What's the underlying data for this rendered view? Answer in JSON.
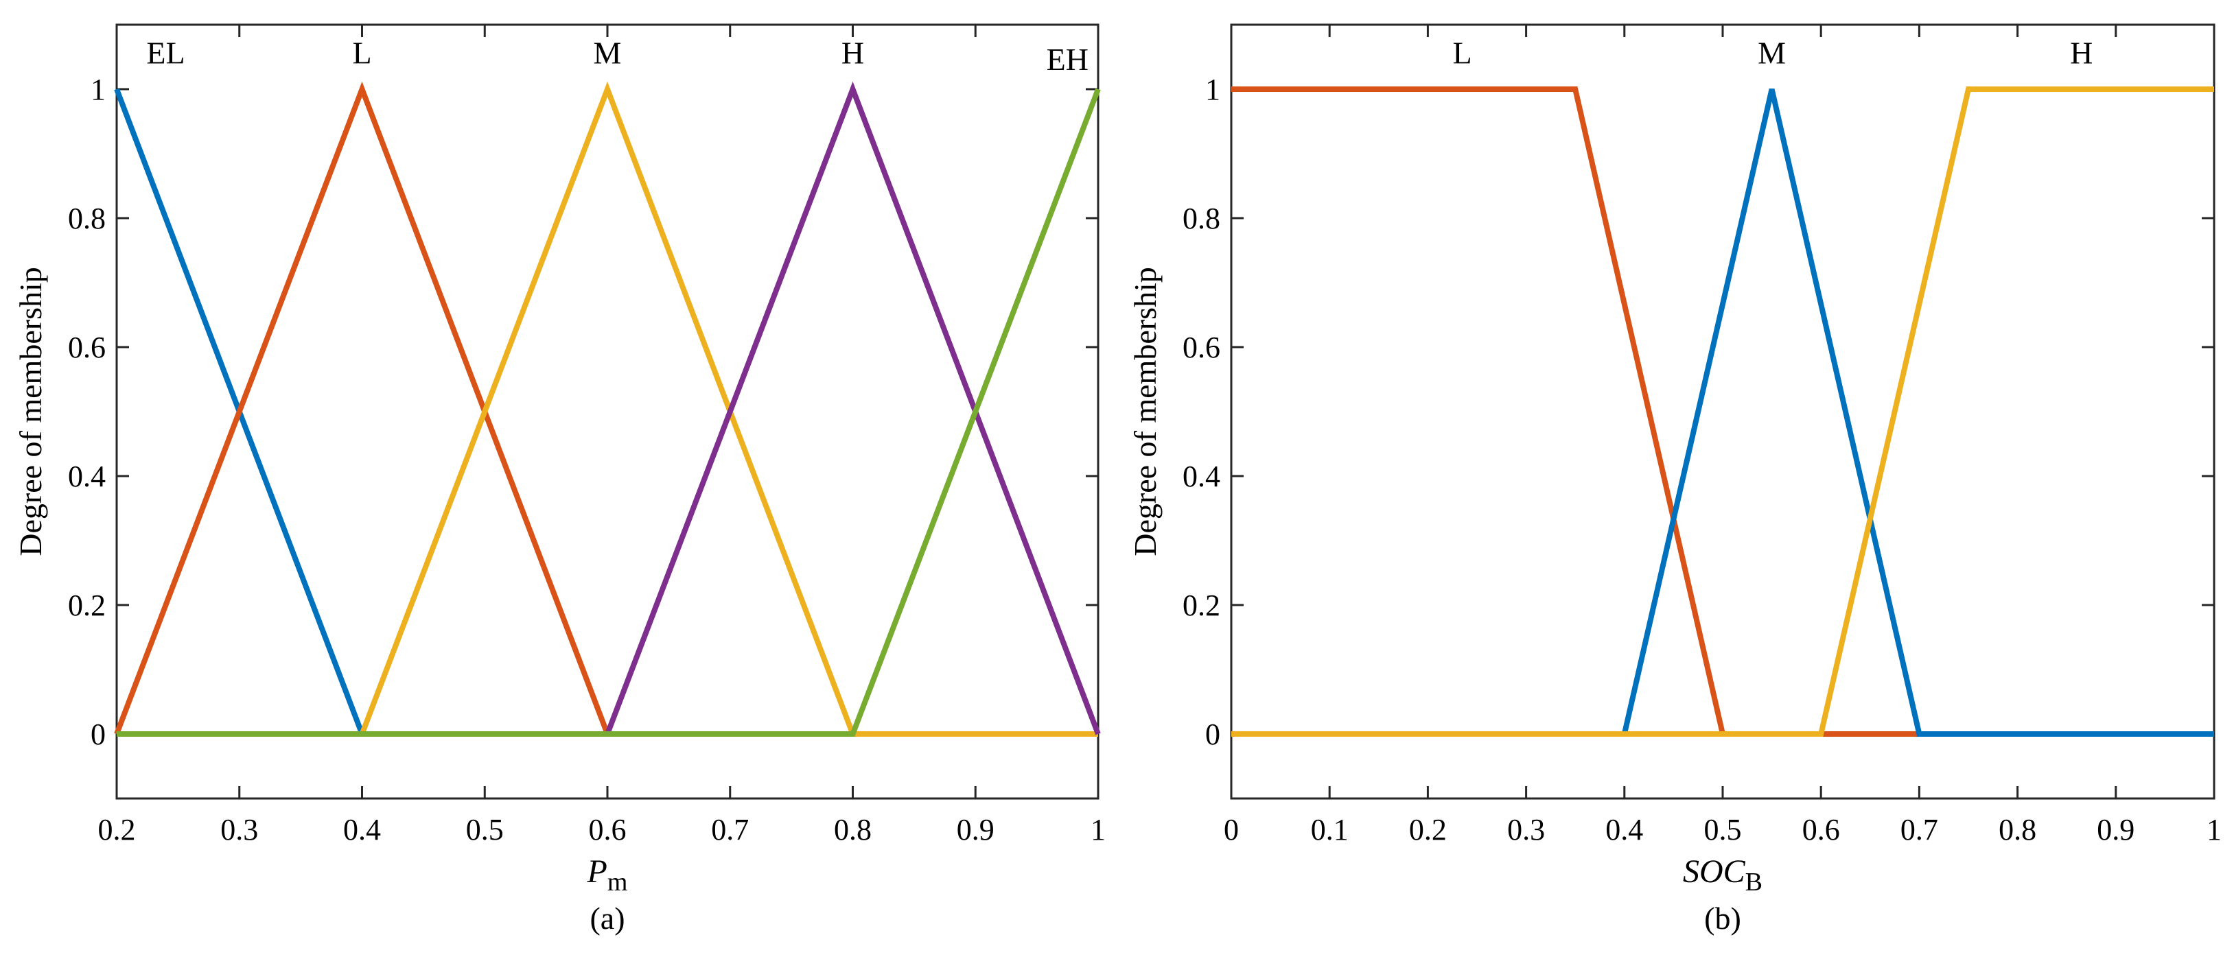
{
  "chart_data": [
    {
      "type": "line",
      "panel": "a",
      "caption": "(a)",
      "xlabel": {
        "main": "P",
        "sub": "m"
      },
      "ylabel": "Degree of membership",
      "xlim": [
        0.2,
        1.0
      ],
      "ylim": [
        -0.1,
        1.1
      ],
      "xticks": [
        0.2,
        0.3,
        0.4,
        0.5,
        0.6,
        0.7,
        0.8,
        0.9,
        1.0
      ],
      "xtick_labels": [
        "0.2",
        "0.3",
        "0.4",
        "0.5",
        "0.6",
        "0.7",
        "0.8",
        "0.9",
        "1"
      ],
      "yticks": [
        0,
        0.2,
        0.4,
        0.6,
        0.8,
        1.0
      ],
      "ytick_labels": [
        "0",
        "0.2",
        "0.4",
        "0.6",
        "0.8",
        "1"
      ],
      "grid": false,
      "series": [
        {
          "name": "EL",
          "color": "#0072BD",
          "points": [
            [
              0.2,
              1
            ],
            [
              0.4,
              0
            ],
            [
              1.0,
              0
            ]
          ]
        },
        {
          "name": "L",
          "color": "#D95319",
          "points": [
            [
              0.2,
              0
            ],
            [
              0.4,
              1
            ],
            [
              0.6,
              0
            ],
            [
              1.0,
              0
            ]
          ]
        },
        {
          "name": "M",
          "color": "#EDB120",
          "points": [
            [
              0.2,
              0
            ],
            [
              0.4,
              0
            ],
            [
              0.6,
              1
            ],
            [
              0.8,
              0
            ],
            [
              1.0,
              0
            ]
          ]
        },
        {
          "name": "H",
          "color": "#7E2F8E",
          "points": [
            [
              0.2,
              0
            ],
            [
              0.6,
              0
            ],
            [
              0.8,
              1
            ],
            [
              1.0,
              0
            ]
          ]
        },
        {
          "name": "EH",
          "color": "#77AC30",
          "points": [
            [
              0.2,
              0
            ],
            [
              0.8,
              0
            ],
            [
              1.0,
              1
            ]
          ]
        }
      ],
      "annotations": [
        {
          "text": "EL",
          "x": 0.24,
          "y": 1.04
        },
        {
          "text": "L",
          "x": 0.4,
          "y": 1.04
        },
        {
          "text": "M",
          "x": 0.6,
          "y": 1.04
        },
        {
          "text": "H",
          "x": 0.8,
          "y": 1.04
        },
        {
          "text": "EH",
          "x": 0.975,
          "y": 1.03
        }
      ]
    },
    {
      "type": "line",
      "panel": "b",
      "caption": "(b)",
      "xlabel": {
        "main": "SOC",
        "sub": "B"
      },
      "ylabel": "Degree of membership",
      "xlim": [
        0,
        1.0
      ],
      "ylim": [
        -0.1,
        1.1
      ],
      "xticks": [
        0,
        0.1,
        0.2,
        0.3,
        0.4,
        0.5,
        0.6,
        0.7,
        0.8,
        0.9,
        1.0
      ],
      "xtick_labels": [
        "0",
        "0.1",
        "0.2",
        "0.3",
        "0.4",
        "0.5",
        "0.6",
        "0.7",
        "0.8",
        "0.9",
        "1"
      ],
      "yticks": [
        0,
        0.2,
        0.4,
        0.6,
        0.8,
        1.0
      ],
      "ytick_labels": [
        "0",
        "0.2",
        "0.4",
        "0.6",
        "0.8",
        "1"
      ],
      "grid": false,
      "series": [
        {
          "name": "L",
          "color": "#D95319",
          "points": [
            [
              0,
              1
            ],
            [
              0.35,
              1
            ],
            [
              0.5,
              0
            ],
            [
              1.0,
              0
            ]
          ]
        },
        {
          "name": "M",
          "color": "#0072BD",
          "points": [
            [
              0,
              0
            ],
            [
              0.4,
              0
            ],
            [
              0.55,
              1
            ],
            [
              0.7,
              0
            ],
            [
              1.0,
              0
            ]
          ]
        },
        {
          "name": "H",
          "color": "#EDB120",
          "points": [
            [
              0,
              0
            ],
            [
              0.6,
              0
            ],
            [
              0.75,
              1
            ],
            [
              1.0,
              1
            ]
          ]
        }
      ],
      "annotations": [
        {
          "text": "L",
          "x": 0.235,
          "y": 1.04
        },
        {
          "text": "M",
          "x": 0.55,
          "y": 1.04
        },
        {
          "text": "H",
          "x": 0.865,
          "y": 1.04
        }
      ]
    }
  ]
}
